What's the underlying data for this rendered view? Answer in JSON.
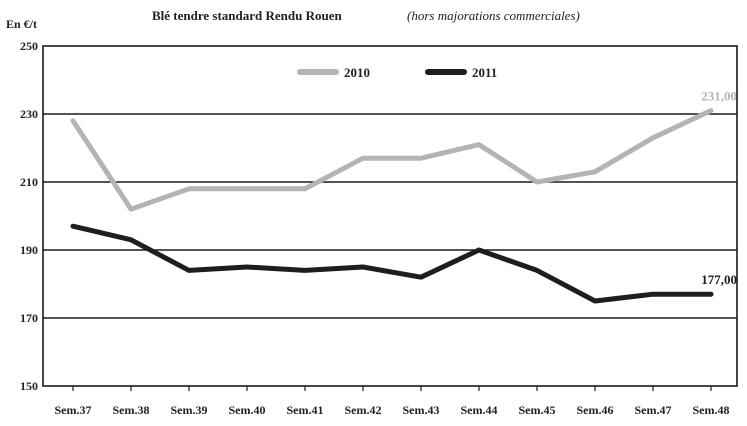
{
  "chart_data": {
    "type": "line",
    "title": "Blé tendre standard Rendu Rouen",
    "subtitle": "(hors majorations commerciales)",
    "unit_label": "En €/t",
    "xlabel": "",
    "ylabel": "",
    "categories": [
      "Sem.37",
      "Sem.38",
      "Sem.39",
      "Sem.40",
      "Sem.41",
      "Sem.42",
      "Sem.43",
      "Sem.44",
      "Sem.45",
      "Sem.46",
      "Sem.47",
      "Sem.48"
    ],
    "ylim": [
      150,
      250
    ],
    "yticks": [
      150,
      170,
      190,
      210,
      230,
      250
    ],
    "grid": true,
    "legend_position": "top",
    "series": [
      {
        "name": "2010",
        "color": "#b4b4b4",
        "values": [
          228,
          202,
          208,
          208,
          208,
          217,
          217,
          221,
          210,
          213,
          223,
          231
        ],
        "end_label": "231,00"
      },
      {
        "name": "2011",
        "color": "#1e1e1e",
        "values": [
          197,
          193,
          184,
          185,
          184,
          185,
          182,
          190,
          184,
          175,
          177,
          177
        ],
        "end_label": "177,00"
      }
    ]
  }
}
